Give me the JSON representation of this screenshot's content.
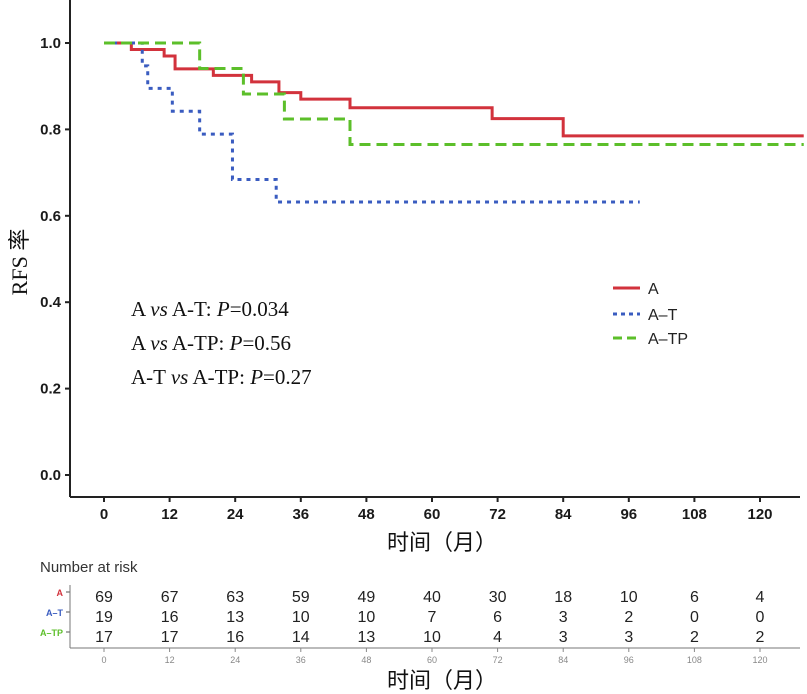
{
  "chart_data": {
    "type": "line",
    "step": true,
    "ylabel": "RFS 率",
    "xlabel": "时间（月）",
    "xlim": [
      -5,
      127
    ],
    "ylim": [
      -0.04,
      1.18
    ],
    "x_ticks": [
      0,
      12,
      24,
      36,
      48,
      60,
      72,
      84,
      96,
      108,
      120
    ],
    "y_ticks": [
      0.0,
      0.2,
      0.4,
      0.6,
      0.8,
      1.0
    ],
    "y_tick_labels": [
      "0.0",
      "0.2",
      "0.4",
      "0.6",
      "0.8",
      "1.0"
    ],
    "series": [
      {
        "name": "A",
        "color": "#d2323c",
        "dash": "solid",
        "points": [
          [
            0,
            1.0
          ],
          [
            5,
            0.985
          ],
          [
            11,
            0.97
          ],
          [
            13,
            0.94
          ],
          [
            19,
            0.94
          ],
          [
            20,
            0.925
          ],
          [
            26,
            0.925
          ],
          [
            27,
            0.91
          ],
          [
            31,
            0.91
          ],
          [
            32,
            0.885
          ],
          [
            35,
            0.885
          ],
          [
            36,
            0.87
          ],
          [
            44,
            0.87
          ],
          [
            45,
            0.85
          ],
          [
            70,
            0.85
          ],
          [
            71,
            0.825
          ],
          [
            83,
            0.825
          ],
          [
            84,
            0.785
          ],
          [
            128,
            0.785
          ]
        ]
      },
      {
        "name": "A–T",
        "color": "#3a5cc0",
        "dash": "dotted",
        "points": [
          [
            0,
            1.0
          ],
          [
            6,
            1.0
          ],
          [
            7,
            0.947
          ],
          [
            8,
            0.895
          ],
          [
            12,
            0.895
          ],
          [
            12.5,
            0.842
          ],
          [
            17,
            0.842
          ],
          [
            17.5,
            0.789
          ],
          [
            23,
            0.789
          ],
          [
            23.5,
            0.684
          ],
          [
            31,
            0.684
          ],
          [
            31.5,
            0.632
          ],
          [
            98,
            0.632
          ]
        ]
      },
      {
        "name": "A–TP",
        "color": "#5cbf2a",
        "dash": "dashed",
        "points": [
          [
            0,
            1.0
          ],
          [
            17,
            1.0
          ],
          [
            17.5,
            0.941
          ],
          [
            25,
            0.941
          ],
          [
            25.5,
            0.882
          ],
          [
            32,
            0.882
          ],
          [
            33,
            0.824
          ],
          [
            44,
            0.824
          ],
          [
            45,
            0.765
          ],
          [
            128,
            0.765
          ]
        ]
      }
    ],
    "annotations": [
      {
        "id": "p1",
        "pre": "A ",
        "vs": "vs",
        "mid": " A-T: ",
        "p": "P",
        "val": "=0.034"
      },
      {
        "id": "p2",
        "pre": "A ",
        "vs": "vs",
        "mid": " A-TP: ",
        "p": "P",
        "val": "=0.56"
      },
      {
        "id": "p3",
        "pre": "A-T ",
        "vs": "vs",
        "mid": " A-TP: ",
        "p": "P",
        "val": "=0.27"
      }
    ],
    "legend": {
      "position": "right-middle",
      "entries": [
        "A",
        "A–T",
        "A–TP"
      ]
    }
  },
  "risk_table": {
    "title": "Number at risk",
    "xlabel": "时间（月）",
    "time_points": [
      0,
      12,
      24,
      36,
      48,
      60,
      72,
      84,
      96,
      108,
      120
    ],
    "rows": [
      {
        "label": "A",
        "color": "#d2323c",
        "values": [
          69,
          67,
          63,
          59,
          49,
          40,
          30,
          18,
          10,
          6,
          4
        ]
      },
      {
        "label": "A–T",
        "color": "#3a5cc0",
        "values": [
          19,
          16,
          13,
          10,
          10,
          7,
          6,
          3,
          2,
          0,
          0
        ]
      },
      {
        "label": "A–TP",
        "color": "#5cbf2a",
        "values": [
          17,
          17,
          16,
          14,
          13,
          10,
          4,
          3,
          3,
          2,
          2
        ]
      }
    ]
  }
}
